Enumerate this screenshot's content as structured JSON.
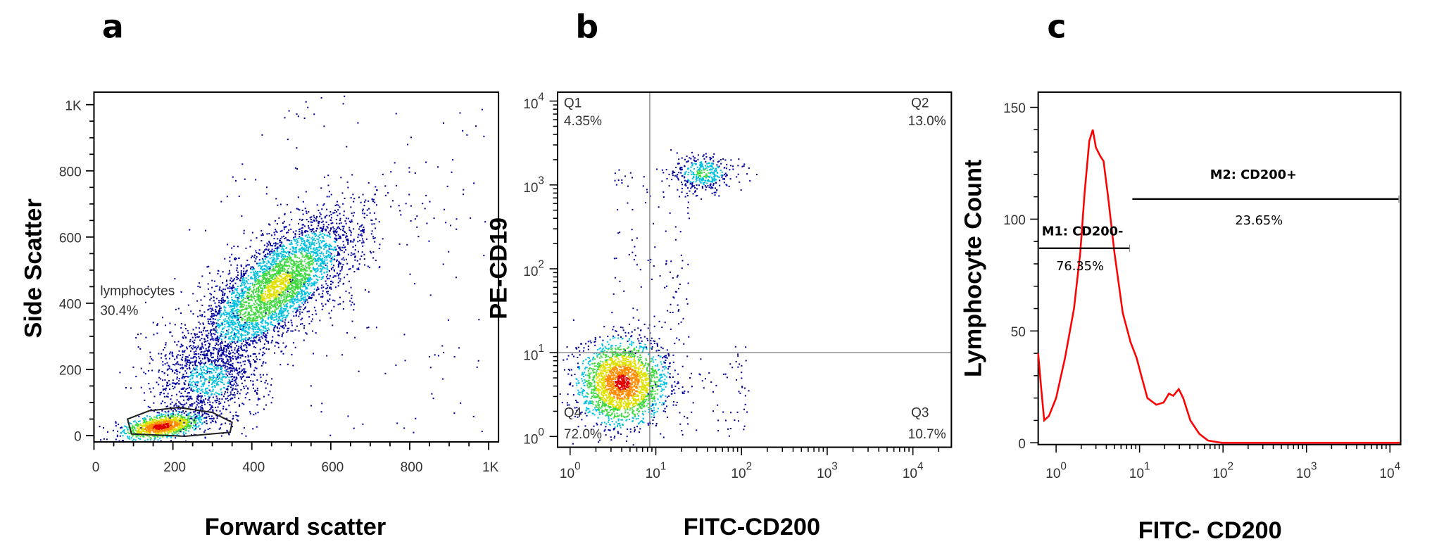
{
  "chart_data": [
    {
      "panel_letter": "a",
      "type": "scatter",
      "xlabel": "Forward scatter",
      "ylabel": "Side Scatter",
      "xlim": [
        0,
        1024
      ],
      "ylim": [
        -20,
        1050
      ],
      "x_ticks": [
        0,
        200,
        400,
        600,
        800,
        1000
      ],
      "x_tick_labels": [
        "0",
        "200",
        "400",
        "600",
        "800",
        "1K"
      ],
      "y_ticks": [
        0,
        200,
        400,
        600,
        800,
        1000
      ],
      "y_tick_labels": [
        "0",
        "200",
        "400",
        "600",
        "800",
        "1K"
      ],
      "gate": {
        "name": "lymphocytes",
        "percent": "30.4%",
        "vertices": [
          [
            95,
            5
          ],
          [
            85,
            50
          ],
          [
            140,
            75
          ],
          [
            215,
            85
          ],
          [
            300,
            70
          ],
          [
            350,
            40
          ],
          [
            345,
            10
          ],
          [
            230,
            -2
          ],
          [
            95,
            5
          ]
        ]
      },
      "populations": [
        {
          "center": [
            170,
            30
          ],
          "spread": [
            50,
            18
          ]
        },
        {
          "center": [
            460,
            450
          ],
          "spread": [
            140,
            55
          ]
        },
        {
          "center": [
            290,
            170
          ],
          "spread": [
            70,
            70
          ]
        }
      ],
      "colormap": [
        "#0000a0",
        "#00c0e0",
        "#40d840",
        "#e0e000",
        "#ff8c00",
        "#e00000"
      ]
    },
    {
      "panel_letter": "b",
      "type": "scatter",
      "xlabel": "FITC-CD200",
      "ylabel": "PE-CD19",
      "x_scale": "log",
      "y_scale": "log",
      "x_ticks": [
        1,
        10,
        100,
        1000,
        10000
      ],
      "y_ticks": [
        1,
        10,
        100,
        1000,
        10000
      ],
      "tick_labels": [
        {
          "base": "10",
          "exp": "0"
        },
        {
          "base": "10",
          "exp": "1"
        },
        {
          "base": "10",
          "exp": "2"
        },
        {
          "base": "10",
          "exp": "3"
        },
        {
          "base": "10",
          "exp": "4"
        }
      ],
      "quadrant_x": 8.5,
      "quadrant_y": 10,
      "quadrants": [
        {
          "name": "Q1",
          "percent": "4.35%"
        },
        {
          "name": "Q2",
          "percent": "13.0%"
        },
        {
          "name": "Q3",
          "percent": "10.7%"
        },
        {
          "name": "Q4",
          "percent": "72.0%"
        }
      ],
      "populations": [
        {
          "center": [
            4,
            4.5
          ],
          "spread_log": [
            0.25,
            0.25
          ]
        },
        {
          "center": [
            35,
            1400
          ],
          "spread_log": [
            0.2,
            0.12
          ]
        }
      ]
    },
    {
      "panel_letter": "c",
      "type": "line",
      "xlabel": "FITC- CD200",
      "ylabel": "Lymphocyte Count",
      "x_scale": "log",
      "ylim": [
        0,
        155
      ],
      "y_ticks": [
        0,
        50,
        100,
        150
      ],
      "y_tick_labels": [
        "0",
        "50",
        "100",
        "150"
      ],
      "x_ticks": [
        1,
        10,
        100,
        1000,
        10000
      ],
      "tick_labels": [
        {
          "base": "10",
          "exp": "0"
        },
        {
          "base": "10",
          "exp": "1"
        },
        {
          "base": "10",
          "exp": "2"
        },
        {
          "base": "10",
          "exp": "3"
        },
        {
          "base": "10",
          "exp": "4"
        }
      ],
      "series": [
        {
          "color": "#ff0000",
          "points": [
            [
              0.61,
              40
            ],
            [
              0.66,
              25
            ],
            [
              0.72,
              10
            ],
            [
              0.82,
              12
            ],
            [
              1.0,
              20
            ],
            [
              1.28,
              38
            ],
            [
              1.64,
              60
            ],
            [
              1.95,
              85
            ],
            [
              2.2,
              112
            ],
            [
              2.5,
              135
            ],
            [
              2.75,
              140
            ],
            [
              3.0,
              132
            ],
            [
              3.4,
              128
            ],
            [
              3.7,
              126
            ],
            [
              4.2,
              110
            ],
            [
              5.0,
              85
            ],
            [
              6.3,
              58
            ],
            [
              7.8,
              45
            ],
            [
              9.2,
              38
            ],
            [
              10.5,
              30
            ],
            [
              12.4,
              20
            ],
            [
              15.9,
              17
            ],
            [
              19.4,
              18
            ],
            [
              22.5,
              22
            ],
            [
              25.3,
              21
            ],
            [
              29.5,
              24
            ],
            [
              33.3,
              20
            ],
            [
              40.6,
              10
            ],
            [
              52,
              4
            ],
            [
              66,
              1
            ],
            [
              96,
              0
            ],
            [
              13500,
              0
            ]
          ]
        }
      ],
      "markers": [
        {
          "label": "M1: CD200-",
          "percent": "76.35%",
          "range": [
            0.61,
            7.6
          ],
          "level": 87
        },
        {
          "label": "M2: CD200+",
          "percent": "23.65%",
          "range": [
            8.2,
            13500
          ],
          "level": 109
        }
      ]
    }
  ]
}
